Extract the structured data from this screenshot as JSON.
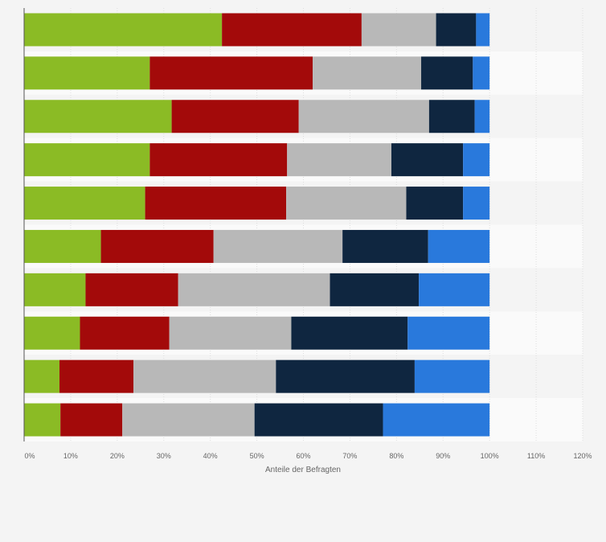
{
  "chart_data": {
    "type": "bar",
    "orientation": "horizontal",
    "stacked": true,
    "categories": [
      "",
      "",
      "",
      "",
      "",
      "",
      "",
      "",
      "",
      ""
    ],
    "series": [
      {
        "color": "#8bbb25",
        "values": [
          42.5,
          27.0,
          31.7,
          27.0,
          26.0,
          16.5,
          13.2,
          12.0,
          7.6,
          7.8
        ]
      },
      {
        "color": "#a30a0a",
        "values": [
          30.0,
          35.0,
          27.3,
          29.5,
          30.3,
          24.2,
          19.9,
          19.2,
          15.9,
          13.3
        ]
      },
      {
        "color": "#b8b8b8",
        "values": [
          16.0,
          23.3,
          28.0,
          22.4,
          25.8,
          27.7,
          32.6,
          26.2,
          30.6,
          28.4
        ]
      },
      {
        "color": "#0f2640",
        "values": [
          8.6,
          11.1,
          9.8,
          15.4,
          12.2,
          18.4,
          19.1,
          25.0,
          29.8,
          27.6
        ]
      },
      {
        "color": "#2979dc",
        "values": [
          2.9,
          3.6,
          3.2,
          5.7,
          5.7,
          13.2,
          15.2,
          17.6,
          16.1,
          22.9
        ]
      }
    ],
    "xlabel": "Anteile der Befragten",
    "xlim": [
      0,
      120
    ],
    "xticks": [
      "0%",
      "10%",
      "20%",
      "30%",
      "40%",
      "50%",
      "60%",
      "70%",
      "80%",
      "90%",
      "100%",
      "110%",
      "120%"
    ],
    "grid": true,
    "legend": "none"
  }
}
